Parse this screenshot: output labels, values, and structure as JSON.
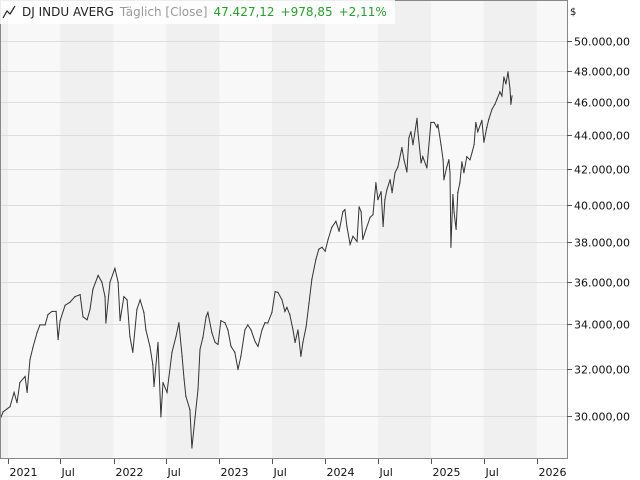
{
  "header": {
    "instrument": "DJ INDU AVERG",
    "mode": "Täglich [Close]",
    "last": "47.427,12",
    "change": "+978,85",
    "change_pct": "+2,11%",
    "icon": "line-chart-icon"
  },
  "colors": {
    "positive": "#27a02a",
    "line": "#333333",
    "band_light": "#f8f8f8",
    "band_dark": "#f0f0f0",
    "grid": "#dddddd"
  },
  "chart_data": {
    "type": "line",
    "title": "DJ INDU AVERG",
    "xlabel": "",
    "ylabel": "",
    "currency_label": "$",
    "y_scale": "log",
    "ylim": [
      28300,
      52900
    ],
    "grid": true,
    "legend": "none",
    "y_ticks": [
      {
        "value": 50000,
        "label": "50.000,00"
      },
      {
        "value": 48000,
        "label": "48.000,00"
      },
      {
        "value": 46000,
        "label": "46.000,00"
      },
      {
        "value": 44000,
        "label": "44.000,00"
      },
      {
        "value": 42000,
        "label": "42.000,00"
      },
      {
        "value": 40000,
        "label": "40.000,00"
      },
      {
        "value": 38000,
        "label": "38.000,00"
      },
      {
        "value": 36000,
        "label": "36.000,00"
      },
      {
        "value": 34000,
        "label": "34.000,00"
      },
      {
        "value": 32000,
        "label": "32.000,00"
      },
      {
        "value": 30000,
        "label": "30.000,00"
      }
    ],
    "x_ticks": [
      {
        "date": "2021-01-01",
        "label": "2021"
      },
      {
        "date": "2021-07-01",
        "label": "Jul"
      },
      {
        "date": "2022-01-01",
        "label": "2022"
      },
      {
        "date": "2022-07-01",
        "label": "Jul"
      },
      {
        "date": "2023-01-01",
        "label": "2023"
      },
      {
        "date": "2023-07-01",
        "label": "Jul"
      },
      {
        "date": "2024-01-01",
        "label": "2024"
      },
      {
        "date": "2024-07-01",
        "label": "Jul"
      },
      {
        "date": "2025-01-01",
        "label": "2025"
      },
      {
        "date": "2025-07-01",
        "label": "Jul"
      },
      {
        "date": "2026-01-01",
        "label": "2026"
      }
    ],
    "series": [
      {
        "dates": [
          "2020-12-04",
          "2020-12-15",
          "2021-01-08",
          "2021-01-22",
          "2021-02-01",
          "2021-02-11",
          "2021-03-01",
          "2021-03-08",
          "2021-03-18",
          "2021-03-28",
          "2021-04-11",
          "2021-04-21",
          "2021-05-09",
          "2021-05-19",
          "2021-06-02",
          "2021-06-16",
          "2021-06-23",
          "2021-06-30",
          "2021-07-17",
          "2021-08-03",
          "2021-08-20",
          "2021-09-07",
          "2021-09-17",
          "2021-10-01",
          "2021-10-11",
          "2021-10-21",
          "2021-11-08",
          "2021-11-21",
          "2021-12-02",
          "2021-12-05",
          "2021-12-19",
          "2022-01-05",
          "2022-01-16",
          "2022-01-23",
          "2022-02-05",
          "2022-02-16",
          "2022-02-26",
          "2022-03-08",
          "2022-03-22",
          "2022-04-02",
          "2022-04-15",
          "2022-04-22",
          "2022-05-06",
          "2022-05-16",
          "2022-05-20",
          "2022-06-03",
          "2022-06-13",
          "2022-06-20",
          "2022-07-04",
          "2022-07-21",
          "2022-08-04",
          "2022-08-14",
          "2022-08-25",
          "2022-09-01",
          "2022-09-07",
          "2022-09-21",
          "2022-09-28",
          "2022-10-09",
          "2022-10-19",
          "2022-10-26",
          "2022-11-05",
          "2022-11-16",
          "2022-11-22",
          "2022-12-06",
          "2022-12-17",
          "2022-12-27",
          "2023-01-06",
          "2023-01-20",
          "2023-01-30",
          "2023-02-10",
          "2023-02-23",
          "2023-03-06",
          "2023-03-16",
          "2023-03-30",
          "2023-04-09",
          "2023-04-20",
          "2023-05-04",
          "2023-05-14",
          "2023-05-28",
          "2023-06-07",
          "2023-06-17",
          "2023-07-01",
          "2023-07-12",
          "2023-07-22",
          "2023-08-05",
          "2023-08-15",
          "2023-08-22",
          "2023-09-01",
          "2023-09-12",
          "2023-09-19",
          "2023-09-29",
          "2023-10-09",
          "2023-10-16",
          "2023-10-27",
          "2023-11-06",
          "2023-11-16",
          "2023-11-30",
          "2023-12-10",
          "2023-12-21",
          "2024-01-01",
          "2024-01-11",
          "2024-01-24",
          "2024-02-07",
          "2024-02-18",
          "2024-03-02",
          "2024-03-09",
          "2024-03-16",
          "2024-03-27",
          "2024-04-06",
          "2024-04-20",
          "2024-04-27",
          "2024-05-04",
          "2024-05-10",
          "2024-05-21",
          "2024-06-04",
          "2024-06-14",
          "2024-06-24",
          "2024-07-01",
          "2024-07-12",
          "2024-07-19",
          "2024-07-25",
          "2024-08-01",
          "2024-08-12",
          "2024-08-19",
          "2024-08-29",
          "2024-09-08",
          "2024-09-22",
          "2024-09-29",
          "2024-10-09",
          "2024-10-16",
          "2024-10-23",
          "2024-10-30",
          "2024-11-13",
          "2024-11-16",
          "2024-11-27",
          "2024-12-03",
          "2024-12-17",
          "2024-12-31",
          "2025-01-11",
          "2025-01-21",
          "2025-01-24",
          "2025-02-04",
          "2025-02-11",
          "2025-02-14",
          "2025-02-24",
          "2025-03-03",
          "2025-03-07",
          "2025-03-10",
          "2025-03-17",
          "2025-03-21",
          "2025-03-28",
          "2025-04-03",
          "2025-04-10",
          "2025-04-17",
          "2025-04-24",
          "2025-05-04",
          "2025-05-15",
          "2025-05-22",
          "2025-05-29",
          "2025-06-04",
          "2025-06-11",
          "2025-06-25",
          "2025-07-02",
          "2025-07-12",
          "2025-07-19",
          "2025-07-30",
          "2025-08-09",
          "2025-08-16",
          "2025-08-26",
          "2025-09-02",
          "2025-09-09",
          "2025-09-16",
          "2025-09-23",
          "2025-09-30",
          "2025-10-03",
          "2025-10-07"
        ],
        "values": [
          29840,
          30170,
          30380,
          30980,
          30550,
          31400,
          31660,
          30980,
          32400,
          32930,
          33600,
          33960,
          33960,
          34440,
          34590,
          34590,
          33290,
          34160,
          34880,
          35030,
          35290,
          35390,
          34340,
          34200,
          34680,
          35650,
          36330,
          36000,
          35290,
          34050,
          36000,
          36680,
          36000,
          34160,
          35290,
          35140,
          33430,
          32720,
          34680,
          35140,
          34540,
          33730,
          32980,
          32180,
          31230,
          33160,
          29960,
          31400,
          30980,
          32720,
          33430,
          34060,
          32540,
          31530,
          30810,
          30260,
          28720,
          29960,
          31100,
          32850,
          33390,
          34340,
          34540,
          33600,
          33160,
          33070,
          34160,
          34060,
          33730,
          32980,
          32720,
          31960,
          32540,
          33730,
          33960,
          33730,
          33200,
          32980,
          33730,
          34060,
          34050,
          34540,
          35540,
          35500,
          35140,
          34590,
          34780,
          34440,
          33730,
          33160,
          33730,
          32540,
          33160,
          33870,
          34980,
          36150,
          37130,
          37650,
          37750,
          37550,
          38160,
          38790,
          39110,
          38580,
          39630,
          39740,
          38840,
          37900,
          38320,
          38050,
          39890,
          39630,
          38160,
          38680,
          39320,
          39470,
          41220,
          40280,
          40720,
          38840,
          40280,
          40830,
          41390,
          40670,
          41780,
          42120,
          43240,
          42530,
          41830,
          43820,
          44190,
          43410,
          45000,
          44190,
          42350,
          42710,
          42060,
          44750,
          44750,
          44440,
          44630,
          43410,
          42530,
          41390,
          42120,
          42530,
          41780,
          37750,
          40560,
          39580,
          38680,
          40670,
          41220,
          42410,
          41780,
          42710,
          42530,
          42940,
          43410,
          44750,
          44190,
          44880,
          43560,
          44440,
          44940,
          45560,
          45870,
          46190,
          46650,
          46390,
          47610,
          47160,
          47940,
          46840,
          45870,
          46390
        ]
      }
    ]
  }
}
